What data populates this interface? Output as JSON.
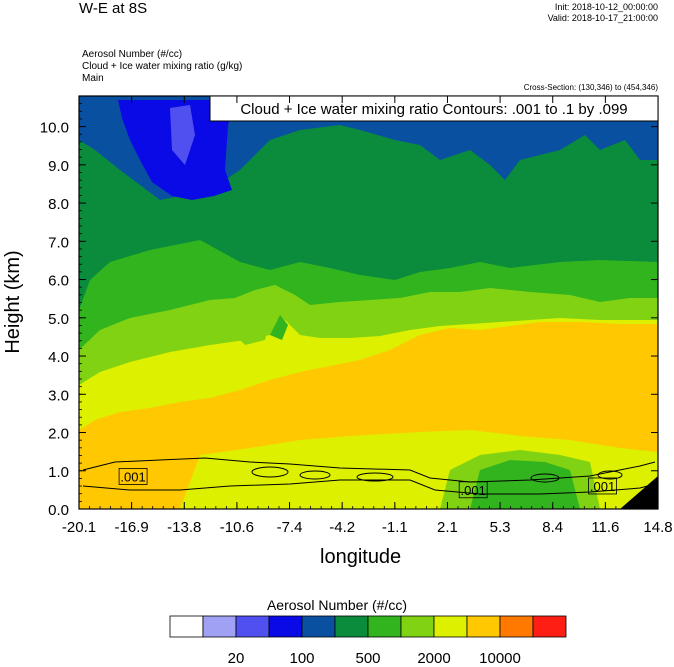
{
  "header": {
    "title": "W-E at 8S",
    "init": "Init: 2018-10-12_00:00:00",
    "valid": "Valid: 2018-10-17_21:00:00",
    "field1": "Aerosol Number   (#/cc)",
    "field2": "Cloud + Ice water mixing ratio   (g/kg)",
    "field3": "Main",
    "cross_section": "Cross-Section: (130,346) to (454,346)"
  },
  "chart_data": {
    "type": "heatmap",
    "title": "W-E at 8S",
    "xlabel": "longitude",
    "ylabel": "Height (km)",
    "xlim": [
      -20.1,
      14.8
    ],
    "ylim": [
      0.0,
      10.8
    ],
    "x_tick_labels": [
      "-20.1",
      "-16.9",
      "-13.8",
      "-10.6",
      "-7.4",
      "-4.2",
      "-1.1",
      "2.1",
      "5.3",
      "8.4",
      "11.6",
      "14.8"
    ],
    "y_tick_values": [
      0,
      1,
      2,
      3,
      4,
      5,
      6,
      7,
      8,
      9,
      10
    ],
    "y_tick_labels": [
      "0.0",
      "1.0",
      "2.0",
      "3.0",
      "4.0",
      "5.0",
      "6.0",
      "7.0",
      "8.0",
      "9.0",
      "10.0"
    ],
    "contour_annotation": "Cloud + Ice water mixing ratio Contours: .001 to .1 by .099",
    "contour_labels": [
      {
        "text": ".001",
        "lon": -16.9,
        "z": 0.8
      },
      {
        "text": ".001",
        "lon": 3.6,
        "z": 0.45
      },
      {
        "text": ".001",
        "lon": 11.4,
        "z": 0.55
      }
    ],
    "colorbar": {
      "title": "Aerosol Number  (#/cc)",
      "colors": [
        "#ffffff",
        "#a0a0f5",
        "#5050f0",
        "#0a0ae6",
        "#0a50a0",
        "#0a8c3c",
        "#32b41e",
        "#82d214",
        "#dcf000",
        "#ffc800",
        "#ff7800",
        "#ff1e14"
      ],
      "tick_labels": [
        "20",
        "100",
        "500",
        "2000",
        "10000"
      ],
      "tick_boundary_index": [
        2,
        4,
        6,
        8,
        10
      ]
    }
  }
}
